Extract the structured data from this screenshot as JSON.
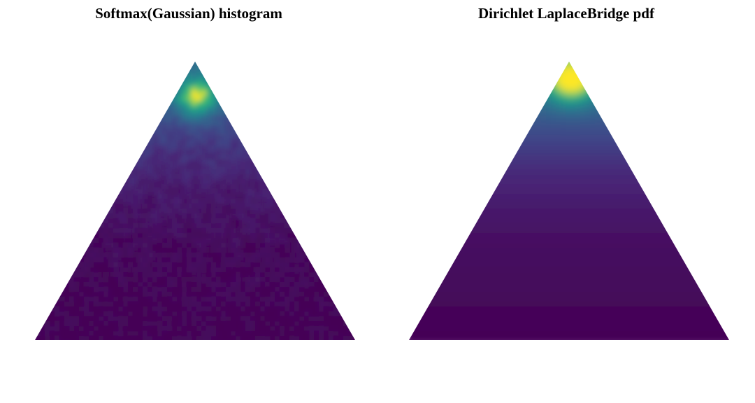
{
  "chart_data": [
    {
      "type": "heatmap",
      "subtype": "ternary-simplex-density",
      "title": "Softmax(Gaussian) histogram",
      "xlabel": "",
      "ylabel": "",
      "colormap": "viridis",
      "grid": false,
      "legend": "none",
      "density_peak": {
        "top_vertex_share": 0.88,
        "left_share": 0.06,
        "right_share": 0.06
      },
      "description_values": {
        "peak_value": 1.0,
        "falloff_toward_base": "monotonic, noisy"
      }
    },
    {
      "type": "heatmap",
      "subtype": "ternary-simplex-density",
      "title": "Dirichlet LaplaceBridge pdf",
      "xlabel": "",
      "ylabel": "",
      "colormap": "viridis",
      "grid": false,
      "legend": "none",
      "density_peak": {
        "top_vertex_share": 0.94,
        "left_share": 0.03,
        "right_share": 0.03
      },
      "description_values": {
        "peak_value": 1.0,
        "falloff_toward_base": "monotonic, smooth"
      }
    }
  ],
  "colors": {
    "viridis_low": "#440154",
    "viridis_mid_low": "#3b528b",
    "viridis_mid": "#21918c",
    "viridis_mid_high": "#5ec962",
    "viridis_high": "#fde725",
    "background": "#ffffff"
  }
}
